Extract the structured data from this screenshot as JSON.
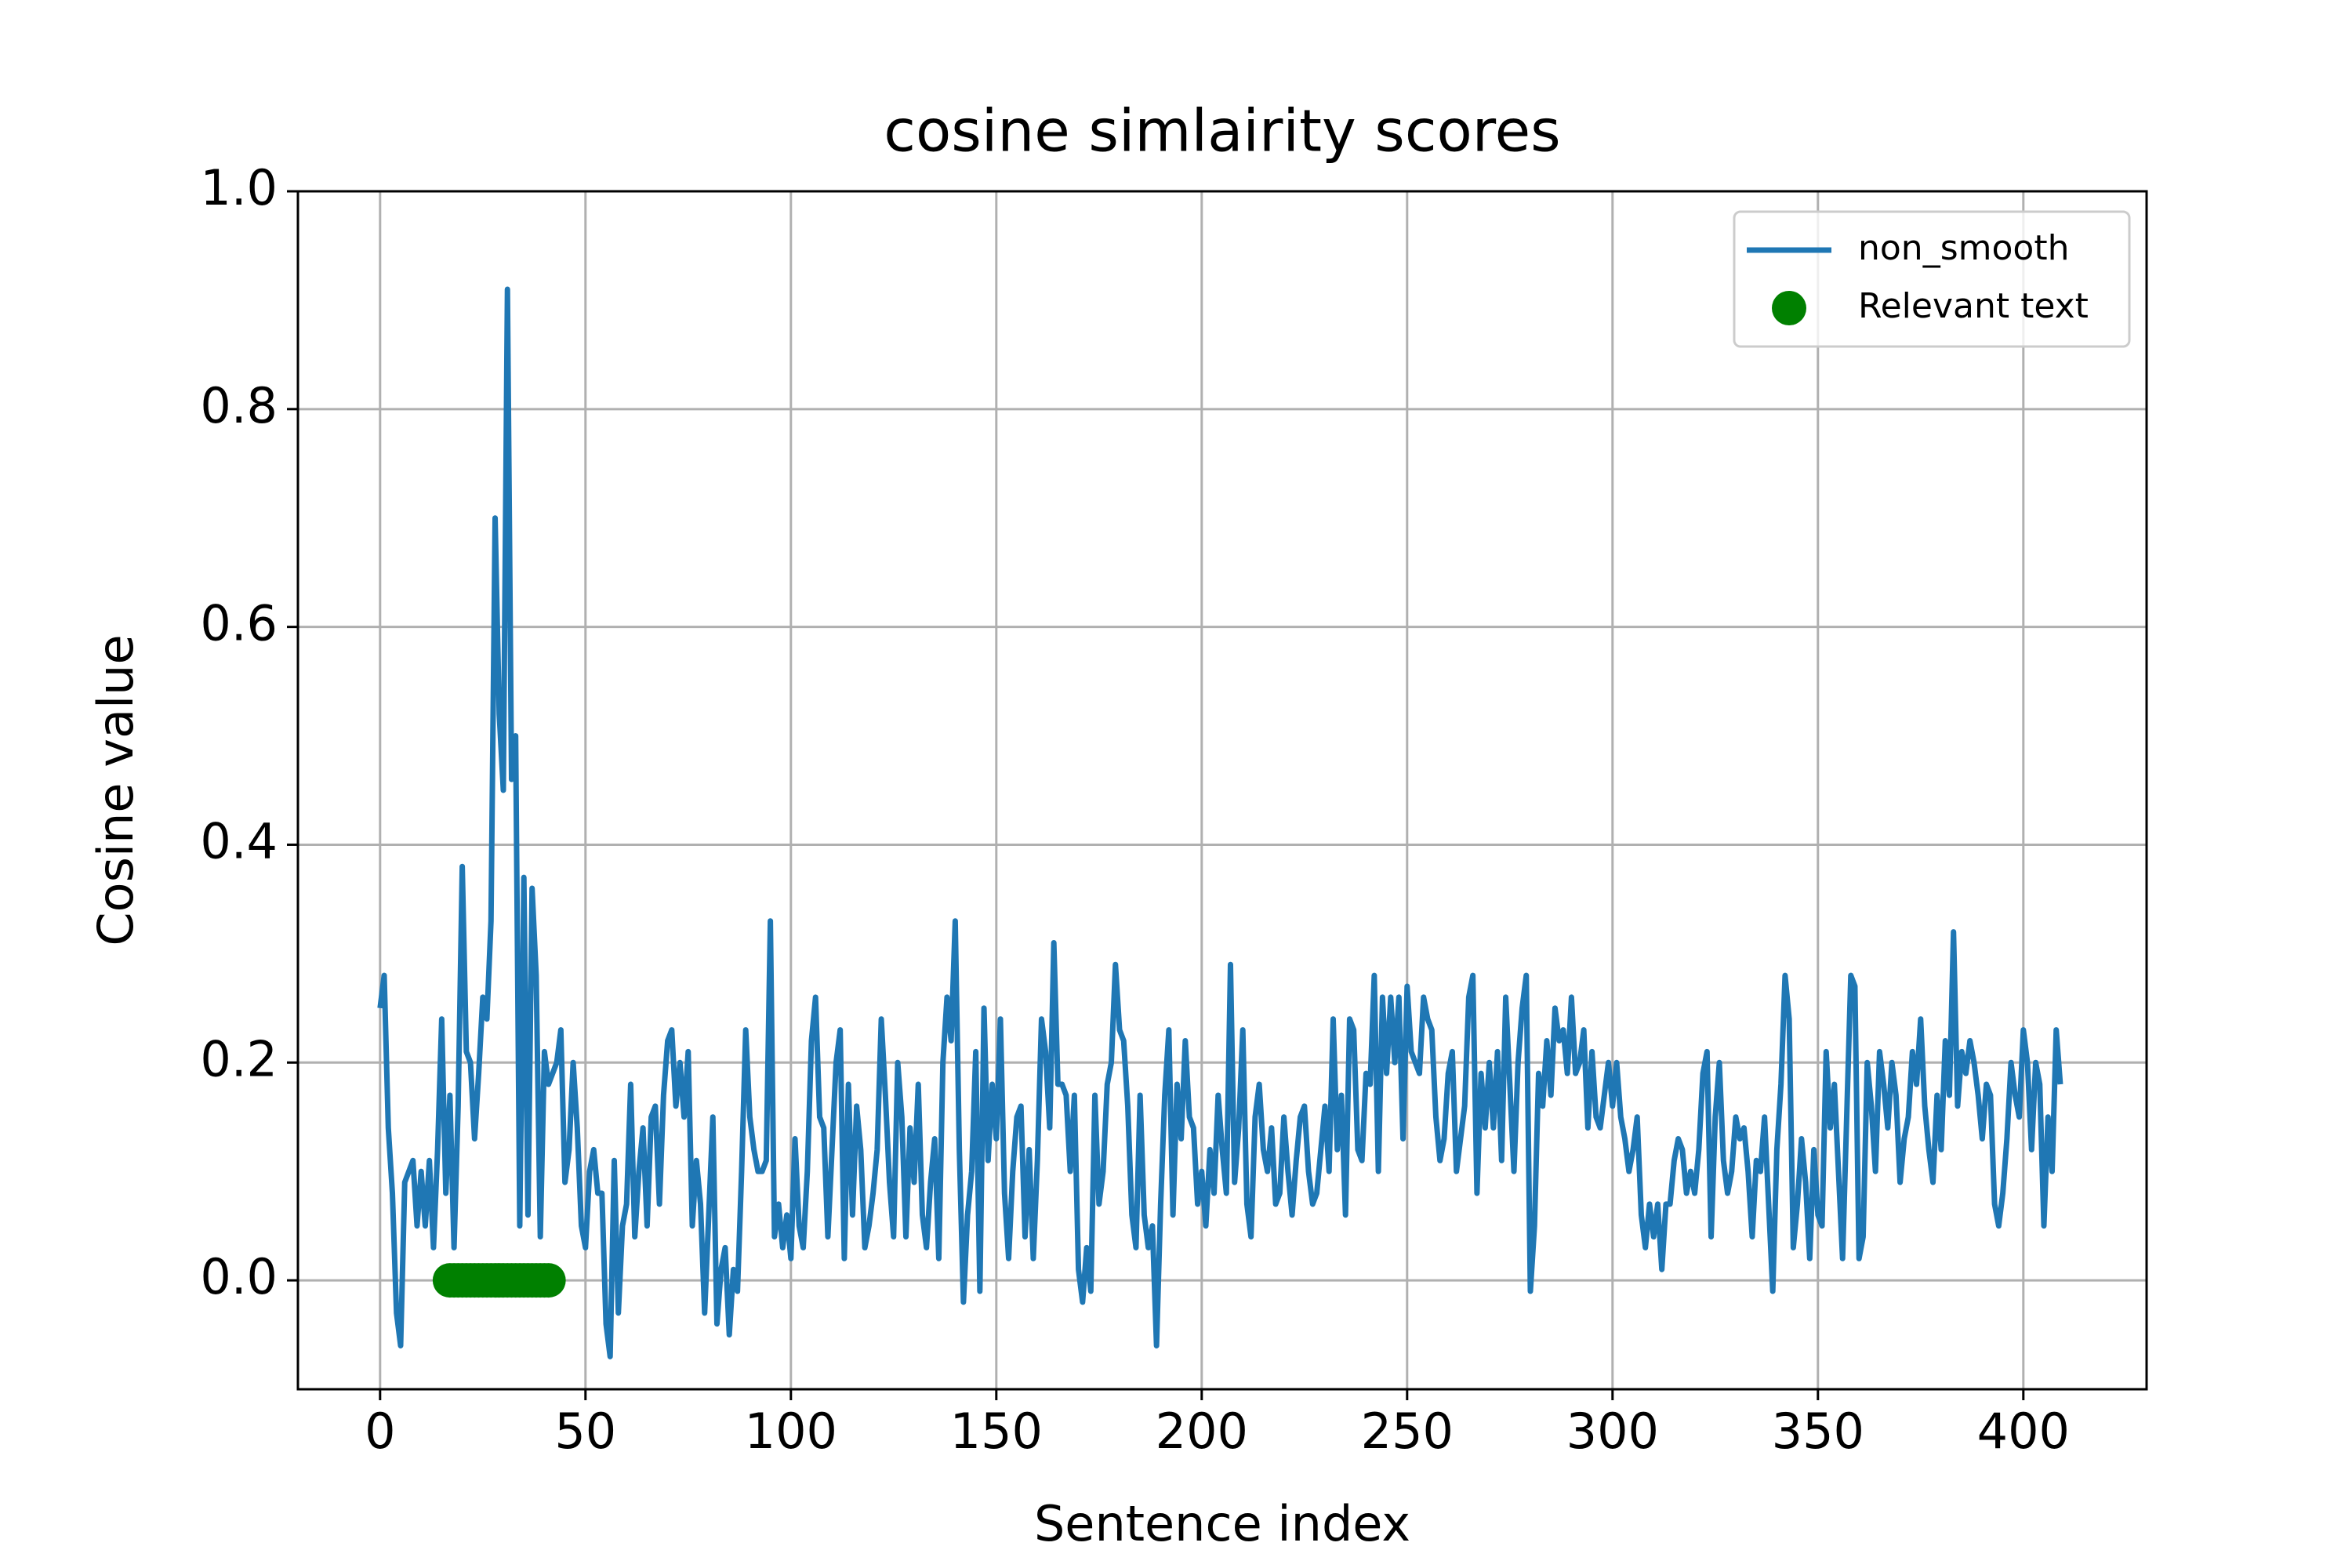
{
  "chart_data": {
    "type": "line",
    "title": "cosine simlairity scores",
    "xlabel": "Sentence index",
    "ylabel": "Cosine value",
    "xlim": [
      -20,
      430
    ],
    "ylim": [
      -0.1,
      1.0
    ],
    "xticks": [
      0,
      50,
      100,
      150,
      200,
      250,
      300,
      350,
      400
    ],
    "yticks": [
      {
        "value": 0,
        "label": "0.0"
      },
      {
        "value": 0.2,
        "label": "0.2"
      },
      {
        "value": 0.4,
        "label": "0.4"
      },
      {
        "value": 0.6,
        "label": "0.6"
      },
      {
        "value": 0.8,
        "label": "0.8"
      },
      {
        "value": 1.0,
        "label": "1.0"
      }
    ],
    "grid": true,
    "legend": "upper right",
    "series": [
      {
        "name": "non_smooth",
        "color": "#1f77b4",
        "type": "line",
        "x": [
          0,
          1,
          2,
          3,
          4,
          5,
          6,
          7,
          8,
          9,
          10,
          11,
          12,
          13,
          14,
          15,
          16,
          17,
          18,
          19,
          20,
          21,
          22,
          23,
          24,
          25,
          26,
          27,
          28,
          29,
          30,
          31,
          32,
          33,
          34,
          35,
          36,
          37,
          38,
          39,
          40,
          41,
          42,
          43,
          44,
          45,
          46,
          47,
          48,
          49,
          50,
          51,
          52,
          53,
          54,
          55,
          56,
          57,
          58,
          59,
          60,
          61,
          62,
          63,
          64,
          65,
          66,
          67,
          68,
          69,
          70,
          71,
          72,
          73,
          74,
          75,
          76,
          77,
          78,
          79,
          80,
          81,
          82,
          83,
          84,
          85,
          86,
          87,
          88,
          89,
          90,
          91,
          92,
          93,
          94,
          95,
          96,
          97,
          98,
          99,
          100,
          101,
          102,
          103,
          104,
          105,
          106,
          107,
          108,
          109,
          110,
          111,
          112,
          113,
          114,
          115,
          116,
          117,
          118,
          119,
          120,
          121,
          122,
          123,
          124,
          125,
          126,
          127,
          128,
          129,
          130,
          131,
          132,
          133,
          134,
          135,
          136,
          137,
          138,
          139,
          140,
          141,
          142,
          143,
          144,
          145,
          146,
          147,
          148,
          149,
          150,
          151,
          152,
          153,
          154,
          155,
          156,
          157,
          158,
          159,
          160,
          161,
          162,
          163,
          164,
          165,
          166,
          167,
          168,
          169,
          170,
          171,
          172,
          173,
          174,
          175,
          176,
          177,
          178,
          179,
          180,
          181,
          182,
          183,
          184,
          185,
          186,
          187,
          188,
          189,
          190,
          191,
          192,
          193,
          194,
          195,
          196,
          197,
          198,
          199,
          200,
          201,
          202,
          203,
          204,
          205,
          206,
          207,
          208,
          209,
          210,
          211,
          212,
          213,
          214,
          215,
          216,
          217,
          218,
          219,
          220,
          221,
          222,
          223,
          224,
          225,
          226,
          227,
          228,
          229,
          230,
          231,
          232,
          233,
          234,
          235,
          236,
          237,
          238,
          239,
          240,
          241,
          242,
          243,
          244,
          245,
          246,
          247,
          248,
          249,
          250,
          251,
          252,
          253,
          254,
          255,
          256,
          257,
          258,
          259,
          260,
          261,
          262,
          263,
          264,
          265,
          266,
          267,
          268,
          269,
          270,
          271,
          272,
          273,
          274,
          275,
          276,
          277,
          278,
          279,
          280,
          281,
          282,
          283,
          284,
          285,
          286,
          287,
          288,
          289,
          290,
          291,
          292,
          293,
          294,
          295,
          296,
          297,
          298,
          299,
          300,
          301,
          302,
          303,
          304,
          305,
          306,
          307,
          308,
          309,
          310,
          311,
          312,
          313,
          314,
          315,
          316,
          317,
          318,
          319,
          320,
          321,
          322,
          323,
          324,
          325,
          326,
          327,
          328,
          329,
          330,
          331,
          332,
          333,
          334,
          335,
          336,
          337,
          338,
          339,
          340,
          341,
          342,
          343,
          344,
          345,
          346,
          347,
          348,
          349,
          350,
          351,
          352,
          353,
          354,
          355,
          356,
          357,
          358,
          359,
          360,
          361,
          362,
          363,
          364,
          365,
          366,
          367,
          368,
          369,
          370,
          371,
          372,
          373,
          374,
          375,
          376,
          377,
          378,
          379,
          380,
          381,
          382,
          383,
          384,
          385,
          386,
          387,
          388,
          389,
          390,
          391,
          392,
          393,
          394,
          395,
          396,
          397,
          398,
          399,
          400,
          401,
          402,
          403,
          404,
          405,
          406,
          407,
          408,
          409
        ],
        "values": [
          0.25,
          0.28,
          0.14,
          0.08,
          -0.03,
          -0.06,
          0.09,
          0.1,
          0.11,
          0.05,
          0.1,
          0.05,
          0.11,
          0.03,
          0.12,
          0.24,
          0.08,
          0.17,
          0.03,
          0.16,
          0.38,
          0.21,
          0.2,
          0.13,
          0.19,
          0.26,
          0.24,
          0.33,
          0.7,
          0.52,
          0.45,
          0.91,
          0.46,
          0.5,
          0.05,
          0.37,
          0.06,
          0.36,
          0.28,
          0.04,
          0.21,
          0.18,
          0.19,
          0.2,
          0.23,
          0.09,
          0.12,
          0.2,
          0.14,
          0.05,
          0.03,
          0.1,
          0.12,
          0.08,
          0.08,
          -0.04,
          -0.07,
          0.11,
          -0.03,
          0.05,
          0.07,
          0.18,
          0.04,
          0.1,
          0.14,
          0.05,
          0.15,
          0.16,
          0.07,
          0.17,
          0.22,
          0.23,
          0.16,
          0.2,
          0.15,
          0.21,
          0.05,
          0.11,
          0.07,
          -0.03,
          0.06,
          0.15,
          -0.04,
          0.01,
          0.03,
          -0.05,
          0.01,
          -0.01,
          0.1,
          0.23,
          0.15,
          0.12,
          0.1,
          0.1,
          0.11,
          0.33,
          0.04,
          0.07,
          0.03,
          0.06,
          0.02,
          0.13,
          0.05,
          0.03,
          0.1,
          0.22,
          0.26,
          0.15,
          0.14,
          0.04,
          0.12,
          0.2,
          0.23,
          0.02,
          0.18,
          0.06,
          0.16,
          0.12,
          0.03,
          0.05,
          0.08,
          0.12,
          0.24,
          0.17,
          0.09,
          0.04,
          0.2,
          0.15,
          0.04,
          0.14,
          0.09,
          0.18,
          0.06,
          0.03,
          0.09,
          0.13,
          0.02,
          0.2,
          0.26,
          0.22,
          0.33,
          0.12,
          -0.02,
          0.06,
          0.1,
          0.21,
          -0.01,
          0.25,
          0.11,
          0.18,
          0.13,
          0.24,
          0.08,
          0.02,
          0.1,
          0.15,
          0.16,
          0.04,
          0.12,
          0.02,
          0.11,
          0.24,
          0.21,
          0.14,
          0.31,
          0.18,
          0.18,
          0.17,
          0.1,
          0.17,
          0.01,
          -0.02,
          0.03,
          -0.01,
          0.17,
          0.07,
          0.1,
          0.18,
          0.2,
          0.29,
          0.23,
          0.22,
          0.16,
          0.06,
          0.03,
          0.17,
          0.06,
          0.03,
          0.05,
          -0.06,
          0.07,
          0.17,
          0.23,
          0.06,
          0.18,
          0.13,
          0.22,
          0.15,
          0.14,
          0.07,
          0.1,
          0.05,
          0.12,
          0.08,
          0.17,
          0.12,
          0.08,
          0.29,
          0.09,
          0.14,
          0.23,
          0.07,
          0.04,
          0.15,
          0.18,
          0.12,
          0.1,
          0.14,
          0.07,
          0.08,
          0.15,
          0.1,
          0.06,
          0.11,
          0.15,
          0.16,
          0.1,
          0.07,
          0.08,
          0.12,
          0.16,
          0.1,
          0.24,
          0.12,
          0.17,
          0.06,
          0.24,
          0.23,
          0.12,
          0.11,
          0.19,
          0.18,
          0.28,
          0.1,
          0.26,
          0.19,
          0.26,
          0.2,
          0.26,
          0.13,
          0.27,
          0.21,
          0.2,
          0.19,
          0.26,
          0.24,
          0.23,
          0.15,
          0.11,
          0.13,
          0.19,
          0.21,
          0.1,
          0.13,
          0.16,
          0.26,
          0.28,
          0.08,
          0.19,
          0.14,
          0.2,
          0.14,
          0.21,
          0.11,
          0.26,
          0.18,
          0.1,
          0.2,
          0.25,
          0.28,
          -0.01,
          0.05,
          0.19,
          0.16,
          0.22,
          0.17,
          0.25,
          0.22,
          0.23,
          0.19,
          0.26,
          0.19,
          0.2,
          0.23,
          0.14,
          0.21,
          0.15,
          0.14,
          0.17,
          0.2,
          0.16,
          0.2,
          0.15,
          0.13,
          0.1,
          0.12,
          0.15,
          0.06,
          0.03,
          0.07,
          0.04,
          0.07,
          0.01,
          0.07,
          0.07,
          0.11,
          0.13,
          0.12,
          0.08,
          0.1,
          0.08,
          0.12,
          0.19,
          0.21,
          0.04,
          0.15,
          0.2,
          0.11,
          0.08,
          0.1,
          0.15,
          0.13,
          0.14,
          0.1,
          0.04,
          0.11,
          0.1,
          0.15,
          0.07,
          -0.01,
          0.12,
          0.18,
          0.28,
          0.24,
          0.03,
          0.07,
          0.13,
          0.09,
          0.02,
          0.12,
          0.06,
          0.05,
          0.21,
          0.14,
          0.18,
          0.1,
          0.02,
          0.15,
          0.28,
          0.27,
          0.02,
          0.04,
          0.2,
          0.16,
          0.1,
          0.21,
          0.18,
          0.14,
          0.2,
          0.17,
          0.09,
          0.13,
          0.15,
          0.21,
          0.18,
          0.24,
          0.16,
          0.12,
          0.09,
          0.17,
          0.12,
          0.22,
          0.17,
          0.32,
          0.16,
          0.21,
          0.19,
          0.22,
          0.2,
          0.17,
          0.13,
          0.18,
          0.17,
          0.07,
          0.05,
          0.08,
          0.13,
          0.2,
          0.17,
          0.15,
          0.23,
          0.2,
          0.12,
          0.2,
          0.18,
          0.05,
          0.15,
          0.1,
          0.23,
          0.18
        ]
      },
      {
        "name": "Relevant text",
        "color": "green",
        "type": "scatter",
        "x": [
          17,
          18,
          19,
          20,
          21,
          22,
          23,
          24,
          25,
          26,
          27,
          28,
          29,
          30,
          31,
          32,
          33,
          34,
          35,
          36,
          37,
          38,
          39,
          40,
          41
        ],
        "values": [
          0,
          0,
          0,
          0,
          0,
          0,
          0,
          0,
          0,
          0,
          0,
          0,
          0,
          0,
          0,
          0,
          0,
          0,
          0,
          0,
          0,
          0,
          0,
          0,
          0
        ]
      }
    ]
  }
}
